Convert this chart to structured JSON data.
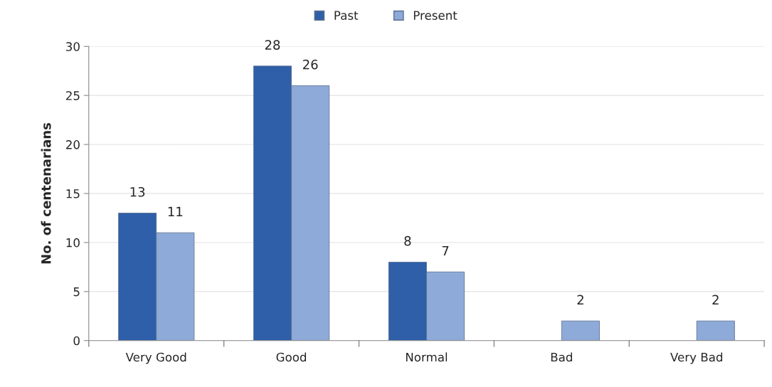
{
  "chart_data": {
    "type": "bar",
    "ylabel": "No. of centenarians",
    "categories": [
      "Very Good",
      "Good",
      "Normal",
      "Bad",
      "Very Bad"
    ],
    "series": [
      {
        "name": "Past",
        "color": "#2e5fa8",
        "values": [
          13,
          28,
          8,
          null,
          null
        ]
      },
      {
        "name": "Present",
        "color": "#8eaad8",
        "values": [
          11,
          26,
          7,
          2,
          2
        ]
      }
    ],
    "ylim": [
      0,
      30
    ],
    "yticks": [
      0,
      5,
      10,
      15,
      20,
      25,
      30
    ],
    "grid": "y",
    "legend": "top",
    "data_labels": true
  }
}
